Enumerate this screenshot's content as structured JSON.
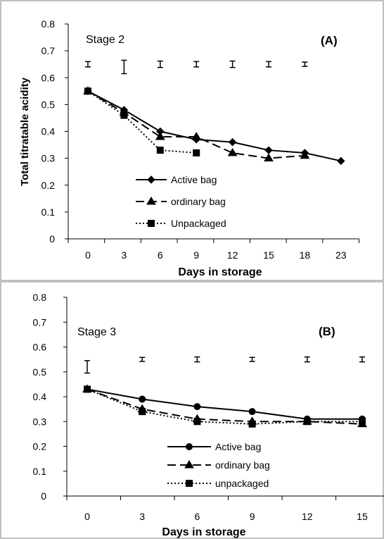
{
  "chart_data": [
    {
      "type": "line",
      "panel_label": "(A)",
      "stage_label": "Stage 2",
      "xlabel": "Days in storage",
      "ylabel": "Total titratable acidity",
      "categories": [
        "0",
        "3",
        "6",
        "9",
        "12",
        "15",
        "18",
        "23"
      ],
      "ylim": [
        0,
        0.8
      ],
      "yticks": [
        "0",
        "0.1",
        "0.2",
        "0.3",
        "0.4",
        "0.5",
        "0.6",
        "0.7",
        "0.8"
      ],
      "grid": false,
      "legend_position": "center-bottom",
      "series": [
        {
          "name": "Active bag",
          "marker": "diamond",
          "dash": "solid",
          "values": [
            0.55,
            0.48,
            0.4,
            0.37,
            0.36,
            0.33,
            0.32,
            0.29
          ]
        },
        {
          "name": "ordinary bag",
          "marker": "triangle",
          "dash": "dashed",
          "values": [
            0.55,
            0.47,
            0.38,
            0.38,
            0.32,
            0.3,
            0.31,
            null
          ]
        },
        {
          "name": "Unpackaged",
          "marker": "square",
          "dash": "dotted",
          "values": [
            0.55,
            0.46,
            0.33,
            0.32,
            null,
            null,
            null,
            null
          ]
        }
      ],
      "error_bars": [
        {
          "category": "0",
          "center": 0.65,
          "half": 0.01
        },
        {
          "category": "3",
          "center": 0.64,
          "half": 0.025
        },
        {
          "category": "6",
          "center": 0.65,
          "half": 0.012
        },
        {
          "category": "9",
          "center": 0.65,
          "half": 0.01
        },
        {
          "category": "12",
          "center": 0.65,
          "half": 0.012
        },
        {
          "category": "15",
          "center": 0.65,
          "half": 0.01
        },
        {
          "category": "18",
          "center": 0.65,
          "half": 0.008
        }
      ]
    },
    {
      "type": "line",
      "panel_label": "(B)",
      "stage_label": "Stage 3",
      "xlabel": "Days in storage",
      "ylabel": "",
      "categories": [
        "0",
        "3",
        "6",
        "9",
        "12",
        "15"
      ],
      "ylim": [
        0,
        0.8
      ],
      "yticks": [
        "0",
        "0.1",
        "0.2",
        "0.3",
        "0.4",
        "0.5",
        "0.6",
        "0.7",
        "0.8"
      ],
      "grid": false,
      "legend_position": "center-bottom",
      "series": [
        {
          "name": "Active bag",
          "marker": "circle",
          "dash": "solid",
          "values": [
            0.43,
            0.39,
            0.36,
            0.34,
            0.31,
            0.31
          ]
        },
        {
          "name": "ordinary bag",
          "marker": "triangle",
          "dash": "dashed",
          "values": [
            0.43,
            0.35,
            0.31,
            0.3,
            0.3,
            0.29
          ]
        },
        {
          "name": "unpackaged",
          "marker": "square",
          "dash": "dotted",
          "values": [
            0.43,
            0.34,
            0.3,
            0.29,
            0.3,
            0.3
          ]
        }
      ],
      "error_bars": [
        {
          "category": "0",
          "center": 0.52,
          "half": 0.025
        },
        {
          "category": "3",
          "center": 0.55,
          "half": 0.008
        },
        {
          "category": "6",
          "center": 0.55,
          "half": 0.01
        },
        {
          "category": "9",
          "center": 0.55,
          "half": 0.008
        },
        {
          "category": "12",
          "center": 0.55,
          "half": 0.01
        },
        {
          "category": "15",
          "center": 0.55,
          "half": 0.01
        }
      ]
    }
  ]
}
